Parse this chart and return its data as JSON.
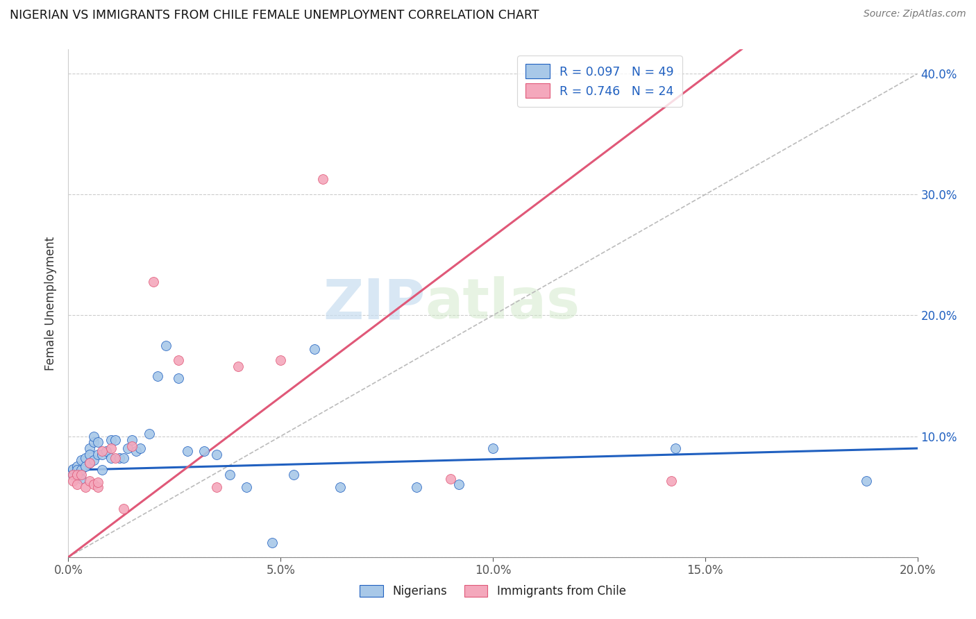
{
  "title": "NIGERIAN VS IMMIGRANTS FROM CHILE FEMALE UNEMPLOYMENT CORRELATION CHART",
  "source": "Source: ZipAtlas.com",
  "ylabel": "Female Unemployment",
  "xlim": [
    0.0,
    0.2
  ],
  "ylim": [
    0.0,
    0.42
  ],
  "xticks": [
    0.0,
    0.05,
    0.1,
    0.15,
    0.2
  ],
  "yticks": [
    0.0,
    0.1,
    0.2,
    0.3,
    0.4
  ],
  "color_nigerian": "#a8c8e8",
  "color_chile": "#f4a8bc",
  "color_nigerian_line": "#2060c0",
  "color_chile_line": "#e05878",
  "color_ref_line": "#bbbbbb",
  "watermark_zip": "ZIP",
  "watermark_atlas": "atlas",
  "nigerian_trend_x0": 0.0,
  "nigerian_trend_y0": 0.072,
  "nigerian_trend_x1": 0.2,
  "nigerian_trend_y1": 0.09,
  "chile_trend_x0": 0.0,
  "chile_trend_y0": 0.0,
  "chile_trend_x1": 0.1,
  "chile_trend_y1": 0.265,
  "nigerians_x": [
    0.001,
    0.001,
    0.001,
    0.002,
    0.002,
    0.002,
    0.003,
    0.003,
    0.003,
    0.004,
    0.004,
    0.005,
    0.005,
    0.005,
    0.006,
    0.006,
    0.006,
    0.007,
    0.007,
    0.008,
    0.008,
    0.009,
    0.01,
    0.01,
    0.011,
    0.012,
    0.013,
    0.014,
    0.015,
    0.016,
    0.017,
    0.019,
    0.021,
    0.023,
    0.026,
    0.028,
    0.032,
    0.035,
    0.038,
    0.042,
    0.048,
    0.053,
    0.058,
    0.064,
    0.082,
    0.092,
    0.1,
    0.143,
    0.188
  ],
  "nigerians_y": [
    0.072,
    0.068,
    0.073,
    0.075,
    0.068,
    0.072,
    0.08,
    0.065,
    0.072,
    0.082,
    0.075,
    0.09,
    0.085,
    0.078,
    0.095,
    0.1,
    0.08,
    0.095,
    0.085,
    0.085,
    0.072,
    0.088,
    0.082,
    0.097,
    0.097,
    0.082,
    0.082,
    0.09,
    0.097,
    0.088,
    0.09,
    0.102,
    0.15,
    0.175,
    0.148,
    0.088,
    0.088,
    0.085,
    0.068,
    0.058,
    0.012,
    0.068,
    0.172,
    0.058,
    0.058,
    0.06,
    0.09,
    0.09,
    0.063
  ],
  "chile_x": [
    0.001,
    0.001,
    0.002,
    0.002,
    0.003,
    0.004,
    0.005,
    0.005,
    0.006,
    0.007,
    0.007,
    0.008,
    0.01,
    0.011,
    0.013,
    0.015,
    0.02,
    0.026,
    0.035,
    0.04,
    0.05,
    0.06,
    0.09,
    0.142
  ],
  "chile_y": [
    0.068,
    0.063,
    0.06,
    0.068,
    0.068,
    0.058,
    0.078,
    0.063,
    0.06,
    0.058,
    0.062,
    0.088,
    0.09,
    0.082,
    0.04,
    0.092,
    0.228,
    0.163,
    0.058,
    0.158,
    0.163,
    0.313,
    0.065,
    0.063
  ]
}
